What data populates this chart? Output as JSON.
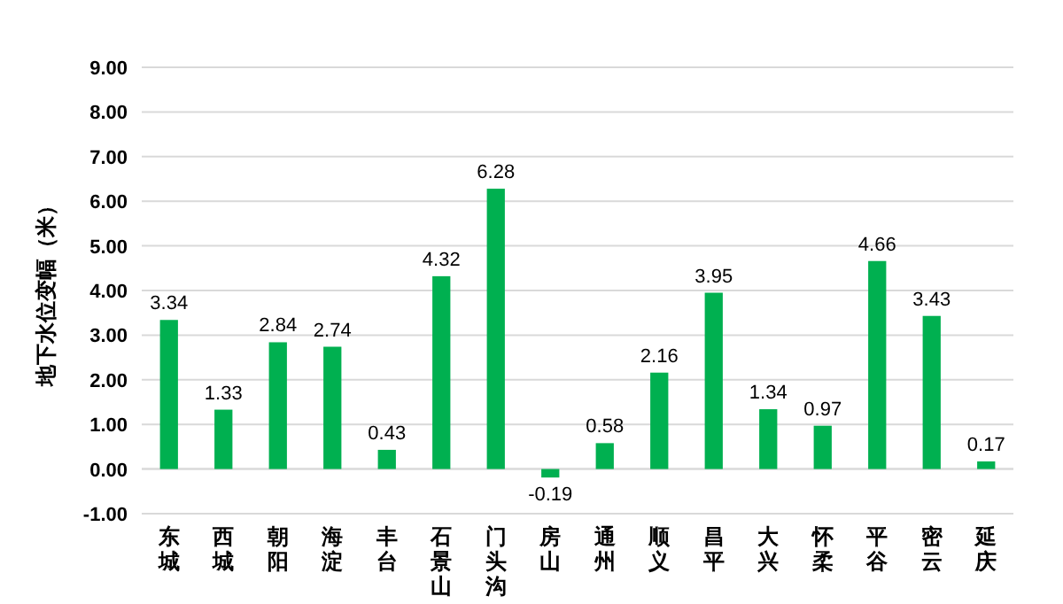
{
  "chart_data": {
    "type": "bar",
    "ylabel": "地下水位变幅（米）",
    "categories": [
      "东城",
      "西城",
      "朝阳",
      "海淀",
      "丰台",
      "石景山",
      "门头沟",
      "房山",
      "通州",
      "顺义",
      "昌平",
      "大兴",
      "怀柔",
      "平谷",
      "密云",
      "延庆"
    ],
    "values": [
      3.34,
      1.33,
      2.84,
      2.74,
      0.43,
      4.32,
      6.28,
      -0.19,
      0.58,
      2.16,
      3.95,
      1.34,
      0.97,
      4.66,
      3.43,
      0.17
    ],
    "color": "#00b050",
    "value_labels": [
      "3.34",
      "1.33",
      "2.84",
      "2.74",
      "0.43",
      "4.32",
      "6.28",
      "-0.19",
      "0.58",
      "2.16",
      "3.95",
      "1.34",
      "0.97",
      "4.66",
      "3.43",
      "0.17"
    ],
    "ylim": [
      -1,
      9
    ],
    "yticks": [
      {
        "value": -1,
        "label": "-1.00"
      },
      {
        "value": 0,
        "label": "0.00"
      },
      {
        "value": 1,
        "label": "1.00"
      },
      {
        "value": 2,
        "label": "2.00"
      },
      {
        "value": 3,
        "label": "3.00"
      },
      {
        "value": 4,
        "label": "4.00"
      },
      {
        "value": 5,
        "label": "5.00"
      },
      {
        "value": 6,
        "label": "6.00"
      },
      {
        "value": 7,
        "label": "7.00"
      },
      {
        "value": 8,
        "label": "8.00"
      },
      {
        "value": 9,
        "label": "9.00"
      }
    ],
    "grid": "y"
  }
}
